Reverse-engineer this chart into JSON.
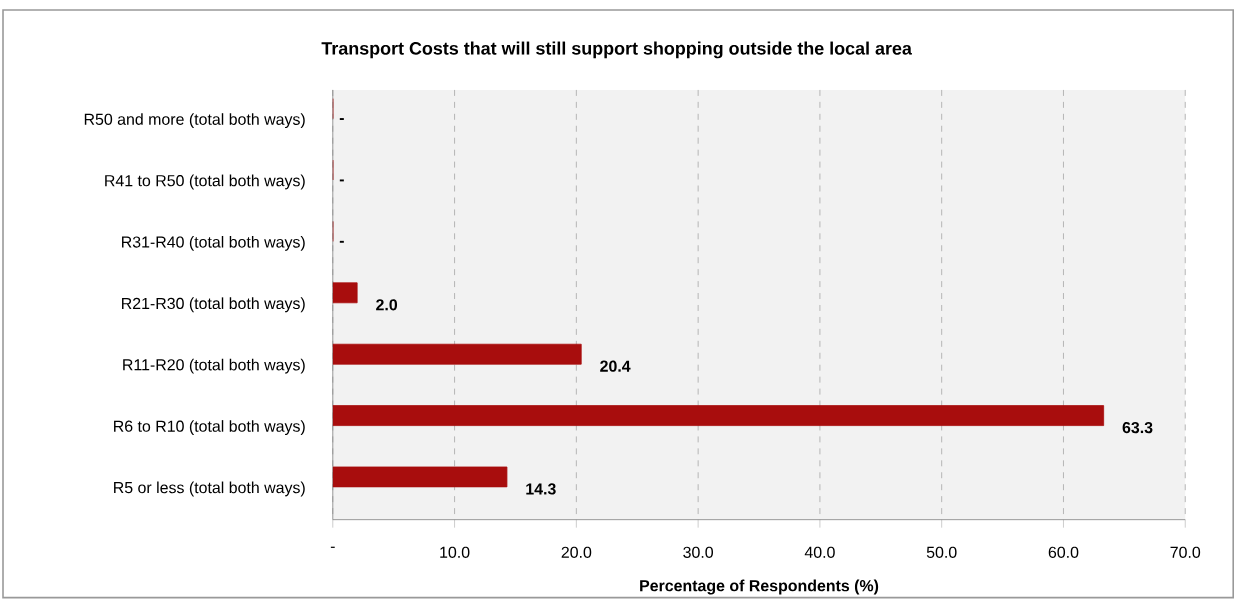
{
  "chart_data": {
    "type": "bar",
    "orientation": "horizontal",
    "title": "Transport Costs that will still support shopping outside the local area",
    "xlabel": "Percentage of Respondents (%)",
    "categories": [
      "R50 and more (total both ways)",
      "R41 to R50 (total both ways)",
      "R31-R40 (total both ways)",
      "R21-R30 (total both ways)",
      "R11-R20 (total both ways)",
      "R6 to R10 (total both ways)",
      "R5 or less (total both ways)"
    ],
    "values": [
      0,
      0,
      0,
      2.0,
      20.4,
      63.3,
      14.3
    ],
    "value_labels": [
      "-",
      "-",
      "-",
      "2.0",
      "20.4",
      "63.3",
      "14.3"
    ],
    "color": "#a80d0d",
    "xlim": [
      0,
      70
    ],
    "xticks": [
      {
        "value": 0,
        "label": "-"
      },
      {
        "value": 10,
        "label": "10.0"
      },
      {
        "value": 20,
        "label": "20.0"
      },
      {
        "value": 30,
        "label": "30.0"
      },
      {
        "value": 40,
        "label": "40.0"
      },
      {
        "value": 50,
        "label": "50.0"
      },
      {
        "value": 60,
        "label": "60.0"
      },
      {
        "value": 70,
        "label": "70.0"
      }
    ],
    "grid": "x"
  }
}
